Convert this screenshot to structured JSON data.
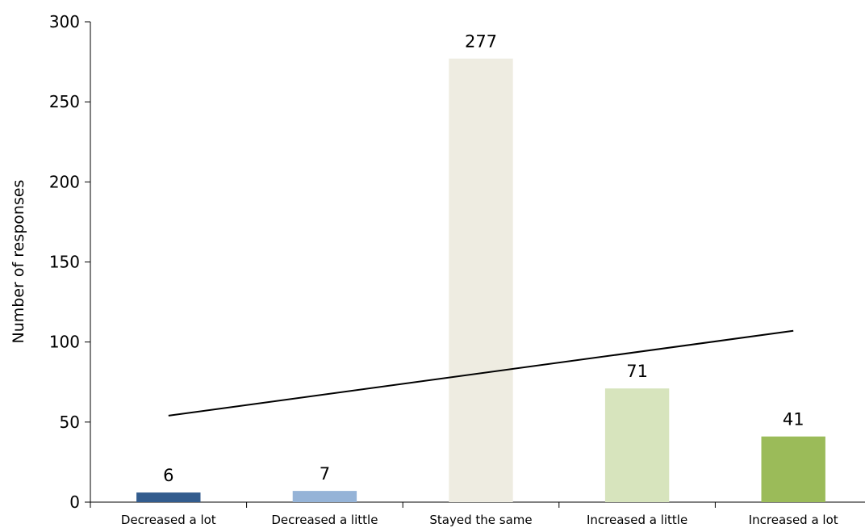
{
  "chart_data": {
    "type": "bar",
    "categories": [
      "Decreased a lot",
      "Decreased a little",
      "Stayed the same",
      "Increased a little",
      "Increased a lot"
    ],
    "values": [
      6,
      7,
      277,
      71,
      41
    ],
    "colors": [
      "#335C8E",
      "#95B3D7",
      "#EEECE1",
      "#D7E4BD",
      "#9BBB59"
    ],
    "data_labels": [
      "6",
      "7",
      "277",
      "71",
      "41"
    ],
    "ylabel": "Number of responses",
    "xlabel": "",
    "ylim": [
      0,
      300
    ],
    "yticks": [
      0,
      50,
      100,
      150,
      200,
      250,
      300
    ],
    "ytick_labels": [
      "0",
      "50",
      "100",
      "150",
      "200",
      "250",
      "300"
    ],
    "trendline": {
      "type": "linear",
      "start_value": 54,
      "end_value": 107,
      "color": "#000000"
    },
    "grid": false,
    "legend": "none"
  }
}
